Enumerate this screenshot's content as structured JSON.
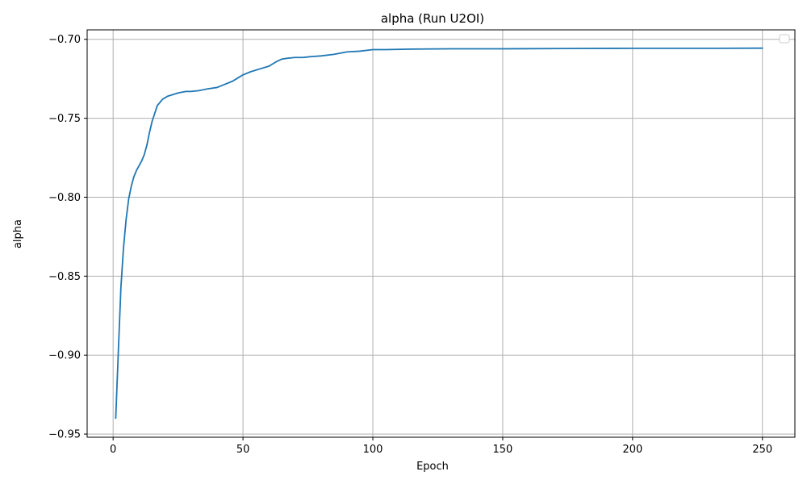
{
  "chart_data": {
    "type": "line",
    "title": "alpha (Run U2OI)",
    "xlabel": "Epoch",
    "ylabel": "alpha",
    "xlim": [
      -10,
      262.5
    ],
    "ylim": [
      -0.952,
      -0.694
    ],
    "xticks": [
      0,
      50,
      100,
      150,
      200,
      250
    ],
    "yticks": [
      -0.95,
      -0.9,
      -0.85,
      -0.8,
      -0.75,
      -0.7
    ],
    "xtick_labels": [
      "0",
      "50",
      "100",
      "150",
      "200",
      "250"
    ],
    "ytick_labels": [
      "−0.95",
      "−0.90",
      "−0.85",
      "−0.80",
      "−0.75",
      "−0.70"
    ],
    "grid": true,
    "legend": {
      "location": "top-right",
      "entries": []
    },
    "series": [
      {
        "color": "#1f77b4",
        "x": [
          1,
          2,
          3,
          4,
          5,
          6,
          7,
          8,
          9,
          10,
          11,
          12,
          13,
          14,
          15,
          16,
          17,
          18,
          19,
          20,
          21,
          23,
          25,
          28,
          30,
          33,
          36,
          40,
          43,
          46,
          48,
          50,
          53,
          56,
          60,
          62,
          63,
          65,
          67,
          70,
          73,
          76,
          80,
          85,
          90,
          95,
          100,
          105,
          115,
          130,
          150,
          175,
          200,
          225,
          250
        ],
        "y": [
          -0.94,
          -0.898,
          -0.857,
          -0.832,
          -0.814,
          -0.801,
          -0.793,
          -0.787,
          -0.783,
          -0.78,
          -0.777,
          -0.773,
          -0.767,
          -0.759,
          -0.752,
          -0.747,
          -0.742,
          -0.74,
          -0.738,
          -0.737,
          -0.736,
          -0.735,
          -0.734,
          -0.733,
          -0.733,
          -0.7325,
          -0.7315,
          -0.7305,
          -0.7285,
          -0.7265,
          -0.7245,
          -0.7225,
          -0.7205,
          -0.719,
          -0.717,
          -0.715,
          -0.714,
          -0.7125,
          -0.712,
          -0.7115,
          -0.7115,
          -0.711,
          -0.7105,
          -0.7095,
          -0.708,
          -0.7075,
          -0.7065,
          -0.7065,
          -0.7062,
          -0.706,
          -0.706,
          -0.7058,
          -0.7057,
          -0.7057,
          -0.7056
        ]
      }
    ]
  }
}
